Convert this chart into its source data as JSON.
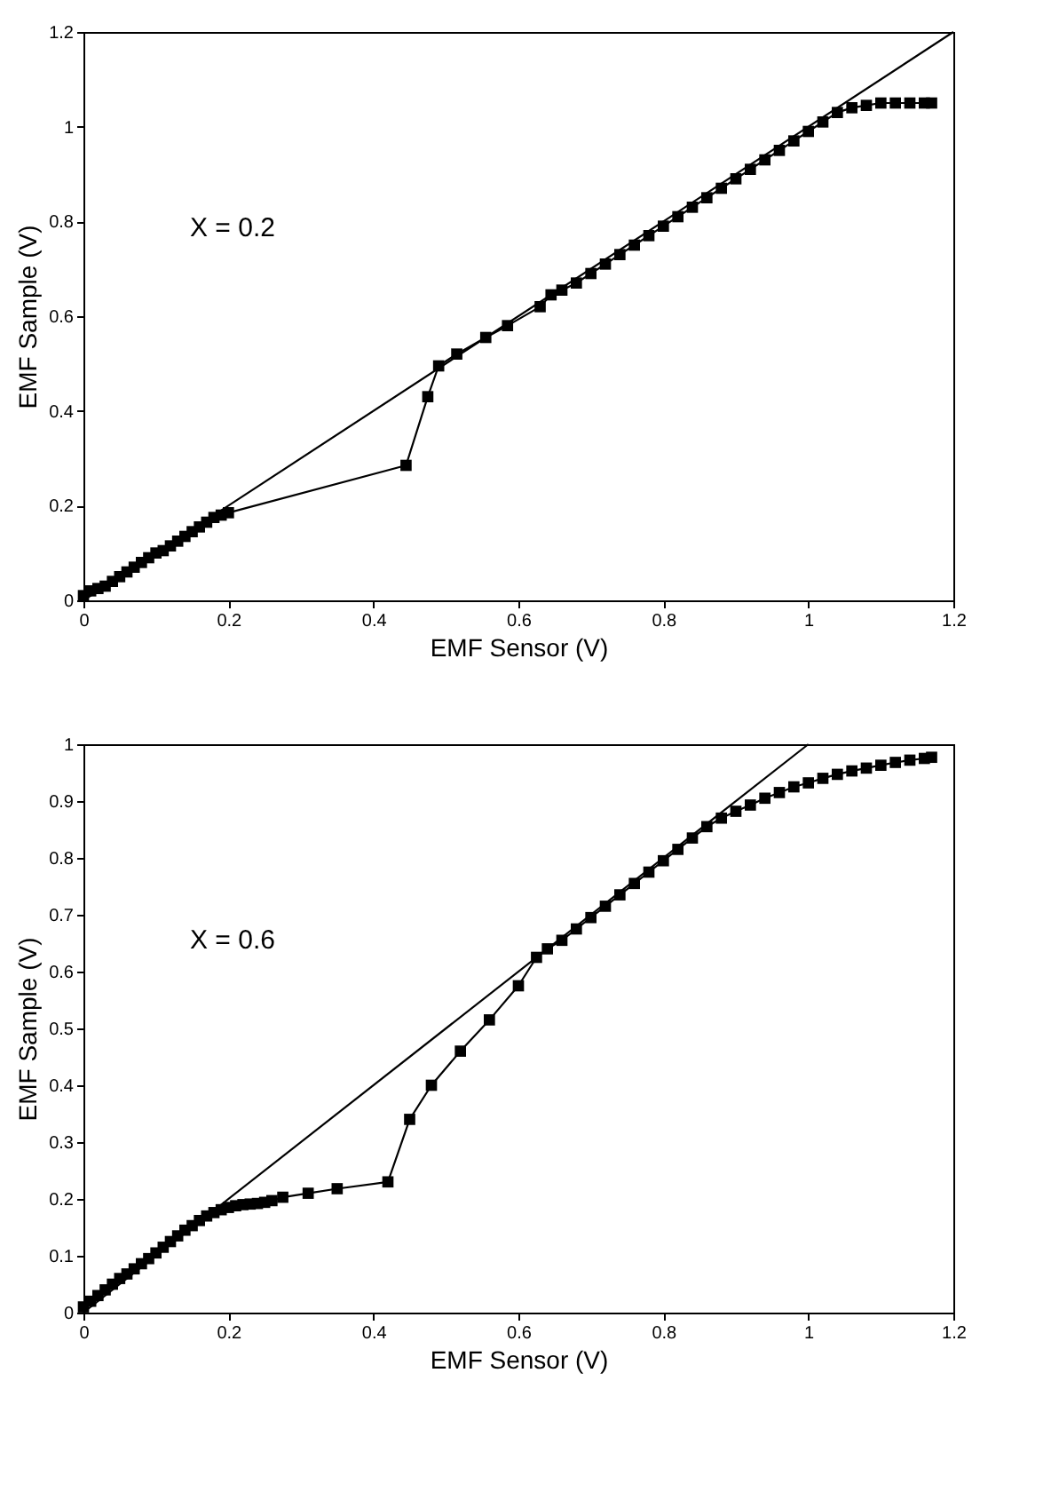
{
  "chart_data": [
    {
      "type": "line",
      "xlabel": "EMF Sensor (V)",
      "ylabel": "EMF Sample (V)",
      "annotations": [
        "X = 0.2"
      ],
      "xlim": [
        0,
        1.2
      ],
      "xticks": [
        0,
        0.2,
        0.4,
        0.6,
        0.8,
        1,
        1.2
      ],
      "ylim": [
        0,
        1.2
      ],
      "yticks": [
        0,
        0.2,
        0.4,
        0.6,
        0.8,
        1,
        1.2
      ],
      "grid": false,
      "series": [
        {
          "color": "#000000",
          "marker": "square",
          "x": [
            0,
            0.01,
            0.02,
            0.03,
            0.04,
            0.05,
            0.06,
            0.07,
            0.08,
            0.09,
            0.1,
            0.11,
            0.12,
            0.13,
            0.14,
            0.15,
            0.16,
            0.17,
            0.18,
            0.19,
            0.2,
            0.445,
            0.475,
            0.49,
            0.515,
            0.555,
            0.585,
            0.63,
            0.645,
            0.66,
            0.68,
            0.7,
            0.72,
            0.74,
            0.76,
            0.78,
            0.8,
            0.82,
            0.84,
            0.86,
            0.88,
            0.9,
            0.92,
            0.94,
            0.96,
            0.98,
            1,
            1.02,
            1.04,
            1.06,
            1.08,
            1.1,
            1.12,
            1.14,
            1.16,
            1.17
          ],
          "values": [
            0.01,
            0.02,
            0.025,
            0.03,
            0.04,
            0.05,
            0.06,
            0.07,
            0.08,
            0.09,
            0.1,
            0.105,
            0.115,
            0.125,
            0.135,
            0.145,
            0.155,
            0.165,
            0.175,
            0.18,
            0.185,
            0.285,
            0.43,
            0.495,
            0.52,
            0.555,
            0.58,
            0.62,
            0.645,
            0.655,
            0.67,
            0.69,
            0.71,
            0.73,
            0.75,
            0.77,
            0.79,
            0.81,
            0.83,
            0.85,
            0.87,
            0.89,
            0.91,
            0.93,
            0.95,
            0.97,
            0.99,
            1.01,
            1.03,
            1.04,
            1.045,
            1.05,
            1.05,
            1.05,
            1.05,
            1.05
          ]
        },
        {
          "color": "#000000",
          "marker": "none",
          "x": [
            0,
            1.2
          ],
          "values": [
            0,
            1.2
          ]
        }
      ]
    },
    {
      "type": "line",
      "xlabel": "EMF Sensor (V)",
      "ylabel": "EMF Sample (V)",
      "annotations": [
        "X = 0.6"
      ],
      "xlim": [
        0,
        1.2
      ],
      "xticks": [
        0,
        0.2,
        0.4,
        0.6,
        0.8,
        1,
        1.2
      ],
      "ylim": [
        0,
        1
      ],
      "yticks": [
        0,
        0.1,
        0.2,
        0.3,
        0.4,
        0.5,
        0.6,
        0.7,
        0.8,
        0.9,
        1
      ],
      "grid": false,
      "series": [
        {
          "color": "#000000",
          "marker": "square",
          "x": [
            0,
            0.01,
            0.02,
            0.03,
            0.04,
            0.05,
            0.06,
            0.07,
            0.08,
            0.09,
            0.1,
            0.11,
            0.12,
            0.13,
            0.14,
            0.15,
            0.16,
            0.17,
            0.18,
            0.19,
            0.2,
            0.21,
            0.22,
            0.23,
            0.24,
            0.25,
            0.26,
            0.275,
            0.31,
            0.35,
            0.42,
            0.45,
            0.48,
            0.52,
            0.56,
            0.6,
            0.625,
            0.64,
            0.66,
            0.68,
            0.7,
            0.72,
            0.74,
            0.76,
            0.78,
            0.8,
            0.82,
            0.84,
            0.86,
            0.88,
            0.9,
            0.92,
            0.94,
            0.96,
            0.98,
            1,
            1.02,
            1.04,
            1.06,
            1.08,
            1.1,
            1.12,
            1.14,
            1.16,
            1.17
          ],
          "values": [
            0.01,
            0.02,
            0.03,
            0.04,
            0.05,
            0.06,
            0.068,
            0.077,
            0.086,
            0.095,
            0.105,
            0.115,
            0.125,
            0.135,
            0.145,
            0.153,
            0.162,
            0.17,
            0.176,
            0.181,
            0.185,
            0.188,
            0.19,
            0.191,
            0.192,
            0.194,
            0.197,
            0.203,
            0.21,
            0.218,
            0.23,
            0.34,
            0.4,
            0.46,
            0.515,
            0.575,
            0.625,
            0.64,
            0.655,
            0.675,
            0.695,
            0.715,
            0.735,
            0.755,
            0.775,
            0.795,
            0.815,
            0.835,
            0.855,
            0.87,
            0.882,
            0.893,
            0.905,
            0.915,
            0.925,
            0.932,
            0.94,
            0.947,
            0.953,
            0.958,
            0.963,
            0.968,
            0.972,
            0.975,
            0.977
          ]
        },
        {
          "color": "#000000",
          "marker": "none",
          "x": [
            0,
            1
          ],
          "values": [
            0,
            1
          ]
        }
      ]
    }
  ]
}
